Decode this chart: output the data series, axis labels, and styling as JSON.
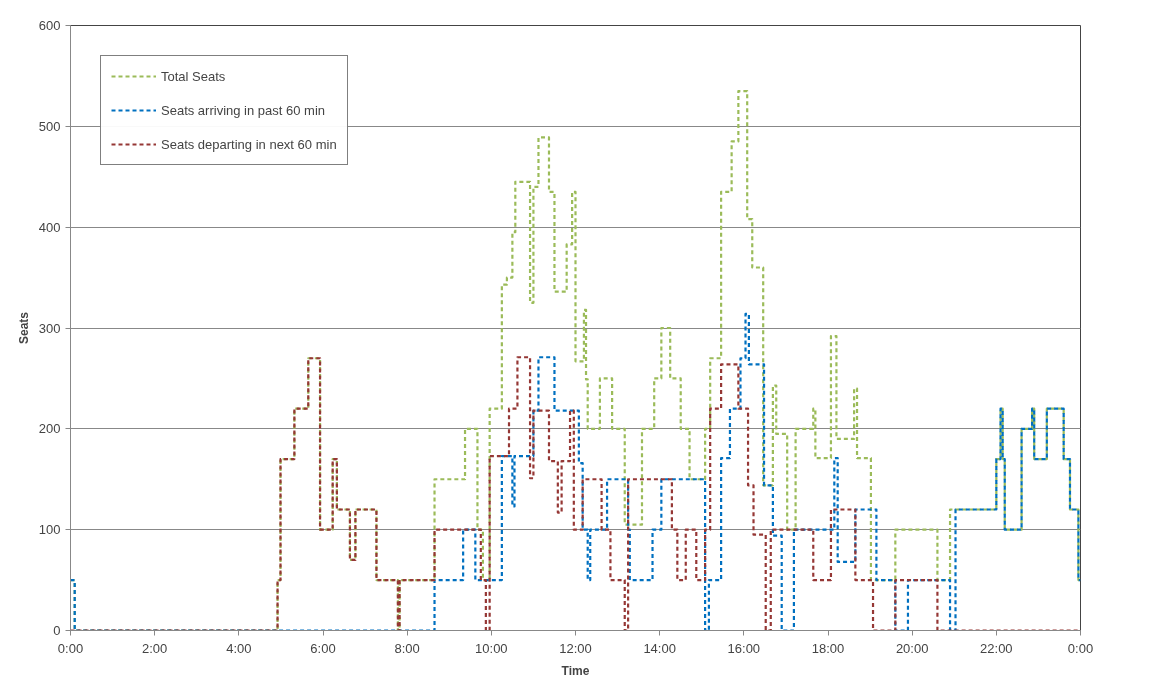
{
  "chart_data": {
    "type": "step",
    "xlabel": "Time",
    "ylabel": "Seats",
    "xlim": [
      0,
      24
    ],
    "ylim": [
      0,
      600
    ],
    "xticks": [
      {
        "value": 0,
        "label": "0:00"
      },
      {
        "value": 2,
        "label": "2:00"
      },
      {
        "value": 4,
        "label": "4:00"
      },
      {
        "value": 6,
        "label": "6:00"
      },
      {
        "value": 8,
        "label": "8:00"
      },
      {
        "value": 10,
        "label": "10:00"
      },
      {
        "value": 12,
        "label": "12:00"
      },
      {
        "value": 14,
        "label": "14:00"
      },
      {
        "value": 16,
        "label": "16:00"
      },
      {
        "value": 18,
        "label": "18:00"
      },
      {
        "value": 20,
        "label": "20:00"
      },
      {
        "value": 22,
        "label": "22:00"
      },
      {
        "value": 24,
        "label": "0:00"
      }
    ],
    "yticks": [
      0,
      100,
      200,
      300,
      400,
      500,
      600
    ],
    "grid": "y",
    "legend": "top left",
    "line_style": "dashed",
    "marker": "none",
    "series": [
      {
        "name": "Total Seats",
        "color": "#9bbb59",
        "x": [
          0,
          0.1,
          4.92,
          4.99,
          5.32,
          5.65,
          5.93,
          6.23,
          6.33,
          6.64,
          6.77,
          7.27,
          7.78,
          7.82,
          8.65,
          9.375,
          9.67,
          9.8,
          9.96,
          10.25,
          10.37,
          10.5,
          10.57,
          10.92,
          11.0,
          11.12,
          11.37,
          11.5,
          11.79,
          11.92,
          12.0,
          12.2,
          12.25,
          12.29,
          12.58,
          12.87,
          13.17,
          13.58,
          13.87,
          14.04,
          14.25,
          14.5,
          14.71,
          15.08,
          15.2,
          15.46,
          15.71,
          15.87,
          16.08,
          16.2,
          16.46,
          16.69,
          16.77,
          17.03,
          17.23,
          17.65,
          17.7,
          18.07,
          18.2,
          18.62,
          18.69,
          19.02,
          19.6,
          20.6,
          20.9,
          22.0,
          22.1,
          22.15,
          22.2,
          22.6,
          22.85,
          22.9,
          23.2,
          23.6,
          23.75,
          23.95,
          24
        ],
        "values": [
          50,
          0,
          50,
          170,
          220,
          270,
          100,
          170,
          120,
          70,
          120,
          50,
          0,
          50,
          150,
          200,
          100,
          50,
          220,
          343,
          350,
          395,
          445,
          325,
          440,
          489,
          435,
          336,
          383,
          435,
          267,
          318,
          249,
          200,
          250,
          200,
          105,
          200,
          250,
          300,
          250,
          200,
          150,
          200,
          270,
          435,
          485,
          535,
          408,
          360,
          144,
          243,
          195,
          100,
          200,
          220,
          171,
          292,
          190,
          240,
          171,
          50,
          100,
          50,
          120,
          170,
          220,
          170,
          100,
          200,
          220,
          170,
          220,
          170,
          120,
          50,
          50
        ]
      },
      {
        "name": "Seats arriving in past 60 min",
        "color": "#0070c0",
        "x": [
          0,
          0.1,
          8.65,
          9.33,
          9.62,
          10.25,
          10.5,
          10.55,
          11.0,
          11.12,
          11.5,
          12.08,
          12.17,
          12.29,
          12.35,
          12.75,
          13.25,
          13.29,
          13.83,
          14.04,
          15.08,
          15.17,
          15.46,
          15.67,
          15.92,
          16.04,
          16.12,
          16.48,
          16.69,
          16.9,
          17.19,
          18.15,
          18.23,
          18.65,
          19.15,
          19.6,
          19.9,
          20.9,
          21.03,
          22.0,
          22.1,
          22.15,
          22.2,
          22.6,
          22.85,
          22.9,
          23.2,
          23.6,
          23.75,
          23.95,
          24
        ],
        "values": [
          50,
          0,
          50,
          100,
          50,
          173,
          123,
          173,
          218,
          271,
          218,
          166,
          100,
          50,
          100,
          150,
          100,
          50,
          100,
          150,
          0,
          50,
          171,
          220,
          270,
          314,
          264,
          144,
          94,
          0,
          100,
          171,
          68,
          120,
          50,
          0,
          50,
          0,
          120,
          170,
          220,
          170,
          100,
          200,
          220,
          170,
          220,
          170,
          120,
          50,
          50
        ]
      },
      {
        "name": "Seats departing in next 60 min",
        "color": "#953735",
        "x": [
          0,
          4.92,
          4.99,
          5.32,
          5.65,
          5.93,
          6.23,
          6.33,
          6.64,
          6.77,
          7.27,
          7.78,
          7.82,
          8.65,
          9.62,
          9.75,
          9.87,
          9.96,
          10.42,
          10.62,
          10.92,
          11.0,
          11.37,
          11.58,
          11.67,
          11.87,
          11.96,
          12.17,
          12.62,
          12.83,
          13.17,
          13.25,
          14.29,
          14.42,
          14.62,
          14.87,
          15.08,
          15.2,
          15.46,
          15.87,
          16.1,
          16.23,
          16.52,
          16.64,
          17.65,
          18.07,
          18.65,
          19.07,
          19.6,
          20.6,
          24
        ],
        "values": [
          0,
          50,
          170,
          220,
          270,
          100,
          170,
          120,
          70,
          120,
          50,
          0,
          50,
          100,
          100,
          50,
          0,
          173,
          220,
          271,
          151,
          218,
          168,
          117,
          168,
          218,
          100,
          150,
          100,
          50,
          0,
          150,
          100,
          50,
          100,
          50,
          100,
          220,
          264,
          220,
          144,
          95,
          0,
          100,
          50,
          120,
          50,
          0,
          50,
          0,
          0
        ]
      }
    ]
  }
}
